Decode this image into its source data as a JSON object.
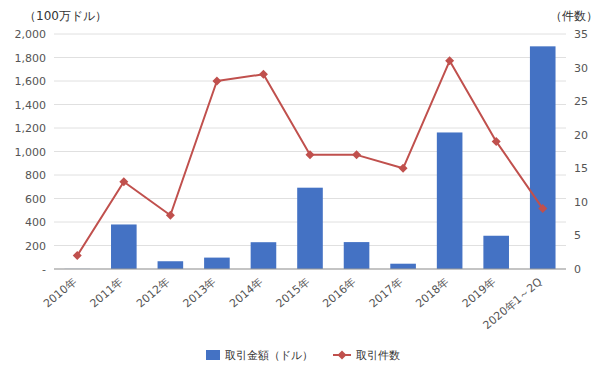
{
  "chart_data": {
    "type": "bar",
    "categories": [
      "2010年",
      "2011年",
      "2012年",
      "2013年",
      "2014年",
      "2015年",
      "2016年",
      "2017年",
      "2018年",
      "2019年",
      "2020年1～2Q"
    ],
    "series": [
      {
        "name": "取引金額（ドル）",
        "type": "bar",
        "color": "#4472C4",
        "values": [
          1,
          379,
          66,
          97,
          228,
          692,
          229,
          45,
          1162,
          283,
          1895
        ]
      },
      {
        "name": "取引件数",
        "type": "line",
        "color": "#C0504D",
        "marker": "diamond",
        "axis": "y2",
        "values": [
          2,
          13,
          8,
          28,
          29,
          17,
          17,
          15,
          31,
          19,
          9
        ]
      }
    ],
    "ylabel": "（100万ドル）",
    "y2label": "（件数）",
    "ylim": [
      0,
      2000
    ],
    "yticks": [
      {
        "value": 0,
        "label": "-"
      },
      200,
      400,
      600,
      800,
      {
        "value": 1000,
        "label": "1,000"
      },
      {
        "value": 1200,
        "label": "1,200"
      },
      {
        "value": 1400,
        "label": "1,400"
      },
      {
        "value": 1600,
        "label": "1,600"
      },
      {
        "value": 1800,
        "label": "1,800"
      },
      {
        "value": 2000,
        "label": "2,000"
      }
    ],
    "y2lim": [
      0,
      35
    ],
    "y2ticks": [
      0,
      5,
      10,
      15,
      20,
      25,
      30,
      35
    ],
    "grid": true,
    "legend": "bottom"
  }
}
